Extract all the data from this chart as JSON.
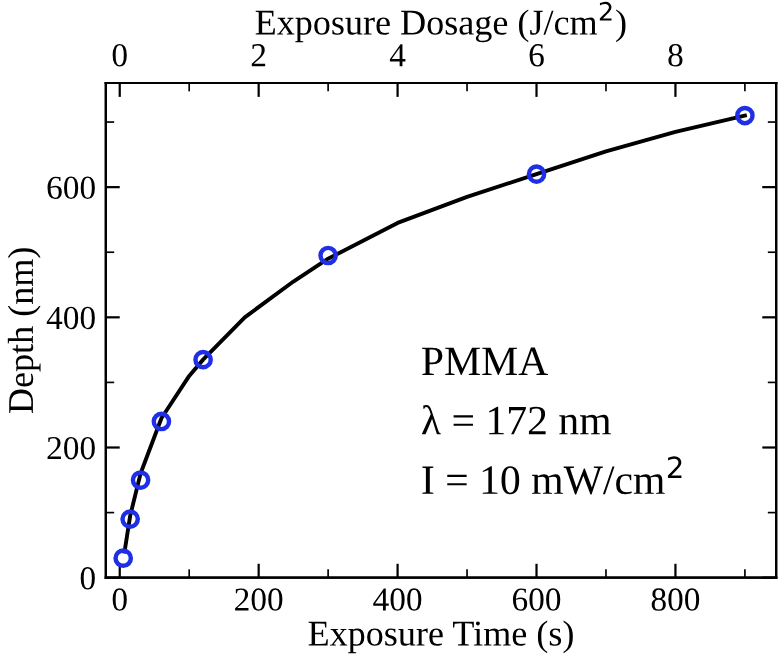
{
  "chart_data": {
    "type": "scatter",
    "xlabel": "Exposure Time (s)",
    "ylabel": "Depth (nm)",
    "x2label": "Exposure Dosage (J/cm$^{2}$)",
    "xlim": [
      -20,
      945
    ],
    "xticks": [
      0,
      200,
      400,
      600,
      800
    ],
    "x2lim": [
      -0.2,
      9.45
    ],
    "x2ticks": [
      0,
      2,
      4,
      6,
      8
    ],
    "ylim": [
      0,
      760
    ],
    "yticks": [
      0,
      200,
      400,
      600
    ],
    "grid": false,
    "legend": false,
    "series": [
      {
        "type": "line",
        "color": "#000000",
        "marker": "none",
        "line_style": "solid",
        "x": [
          7,
          15,
          30,
          60,
          100,
          120,
          180,
          250,
          300,
          400,
          500,
          600,
          700,
          800,
          900
        ],
        "values": [
          40,
          95,
          160,
          245,
          310,
          335,
          400,
          455,
          490,
          545,
          585,
          620,
          655,
          685,
          710
        ]
      },
      {
        "color": "#1f2fe8",
        "marker": "circle",
        "x": [
          5,
          15,
          30,
          60,
          120,
          300,
          600,
          900
        ],
        "values": [
          30,
          90,
          150,
          240,
          335,
          495,
          620,
          710
        ]
      }
    ],
    "annotations": [
      "PMMA",
      "λ = 172 nm",
      "I = 10 mW/cm$^{2}$"
    ]
  }
}
